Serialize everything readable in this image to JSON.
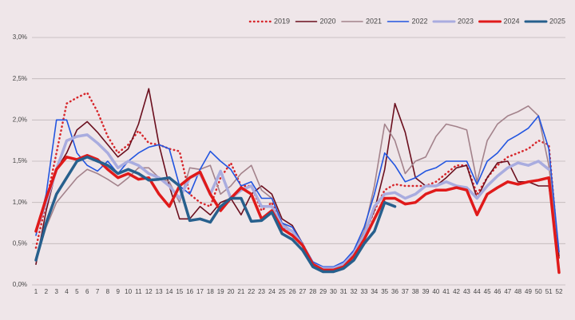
{
  "chart_data": {
    "type": "line",
    "categories": [
      "1",
      "2",
      "3",
      "4",
      "5",
      "6",
      "7",
      "8",
      "9",
      "10",
      "11",
      "12",
      "13",
      "14",
      "15",
      "16",
      "17",
      "18",
      "19",
      "20",
      "21",
      "22",
      "23",
      "24",
      "25",
      "26",
      "27",
      "28",
      "29",
      "30",
      "31",
      "32",
      "33",
      "34",
      "35",
      "36",
      "37",
      "38",
      "39",
      "40",
      "41",
      "42",
      "43",
      "44",
      "45",
      "46",
      "47",
      "48",
      "49",
      "50",
      "51",
      "52"
    ],
    "ylim": [
      0,
      3
    ],
    "yticks": [
      {
        "value": 0,
        "label": "0,0%"
      },
      {
        "value": 0.5,
        "label": "0,5%"
      },
      {
        "value": 1,
        "label": "1,0%"
      },
      {
        "value": 1.5,
        "label": "1,5%"
      },
      {
        "value": 2,
        "label": "2,0%"
      },
      {
        "value": 2.5,
        "label": "2,5%"
      },
      {
        "value": 3,
        "label": "3,0%"
      }
    ],
    "grid": true,
    "legend": "top-right",
    "series": [
      {
        "name": "2019",
        "color": "#d7262b",
        "width": 2.5,
        "dash": "dotted",
        "values": [
          0.45,
          1.0,
          1.6,
          2.2,
          2.27,
          2.33,
          2.1,
          1.8,
          1.6,
          1.7,
          1.87,
          1.72,
          1.7,
          1.65,
          1.62,
          1.1,
          1.0,
          0.95,
          1.3,
          1.48,
          1.2,
          1.2,
          0.9,
          1.0,
          0.7,
          0.65,
          0.5,
          0.25,
          0.2,
          0.2,
          0.25,
          0.35,
          0.6,
          0.9,
          1.15,
          1.22,
          1.2,
          1.2,
          1.2,
          1.25,
          1.35,
          1.45,
          1.45,
          1.1,
          1.3,
          1.45,
          1.55,
          1.6,
          1.65,
          1.75,
          1.7,
          0.3
        ]
      },
      {
        "name": "2020",
        "color": "#6b0f1e",
        "width": 1.6,
        "values": [
          0.25,
          0.9,
          1.4,
          1.6,
          1.88,
          1.98,
          1.85,
          1.7,
          1.55,
          1.65,
          1.95,
          2.38,
          1.7,
          1.2,
          0.8,
          0.8,
          0.95,
          0.85,
          1.0,
          1.05,
          0.85,
          1.1,
          1.2,
          1.1,
          0.8,
          0.72,
          0.5,
          0.25,
          0.2,
          0.2,
          0.25,
          0.4,
          0.6,
          0.9,
          1.4,
          2.2,
          1.85,
          1.3,
          1.2,
          1.2,
          1.3,
          1.42,
          1.45,
          1.05,
          1.3,
          1.48,
          1.5,
          1.25,
          1.25,
          1.2,
          1.2,
          0.35
        ]
      },
      {
        "name": "2021",
        "color": "#a3828b",
        "width": 1.6,
        "values": [
          0.3,
          0.7,
          1.0,
          1.15,
          1.3,
          1.4,
          1.35,
          1.28,
          1.2,
          1.3,
          1.42,
          1.42,
          1.3,
          1.25,
          1.0,
          1.42,
          1.4,
          1.45,
          1.1,
          1.2,
          1.35,
          1.45,
          1.15,
          1.05,
          0.75,
          0.65,
          0.5,
          0.25,
          0.2,
          0.2,
          0.25,
          0.4,
          0.65,
          1.2,
          1.95,
          1.75,
          1.35,
          1.5,
          1.55,
          1.8,
          1.95,
          1.92,
          1.88,
          1.25,
          1.75,
          1.95,
          2.05,
          2.1,
          2.17,
          2.05,
          1.45,
          0.4
        ]
      },
      {
        "name": "2022",
        "color": "#2255e0",
        "width": 1.6,
        "values": [
          0.6,
          1.1,
          2.0,
          2.0,
          1.6,
          1.45,
          1.38,
          1.5,
          1.35,
          1.5,
          1.6,
          1.67,
          1.7,
          1.65,
          1.2,
          1.1,
          1.4,
          1.62,
          1.5,
          1.4,
          1.2,
          1.25,
          1.05,
          1.05,
          0.75,
          0.7,
          0.5,
          0.28,
          0.22,
          0.22,
          0.28,
          0.42,
          0.7,
          1.1,
          1.6,
          1.45,
          1.25,
          1.3,
          1.38,
          1.42,
          1.5,
          1.5,
          1.5,
          1.22,
          1.5,
          1.6,
          1.75,
          1.82,
          1.9,
          2.05,
          1.65,
          0.4
        ]
      },
      {
        "name": "2023",
        "color": "#a9acdf",
        "width": 3.5,
        "values": [
          0.65,
          1.0,
          1.4,
          1.75,
          1.8,
          1.82,
          1.72,
          1.6,
          1.42,
          1.5,
          1.45,
          1.35,
          1.3,
          1.2,
          1.05,
          1.3,
          1.35,
          1.1,
          1.38,
          1.05,
          1.15,
          1.2,
          0.95,
          0.95,
          0.72,
          0.65,
          0.48,
          0.25,
          0.2,
          0.2,
          0.25,
          0.38,
          0.6,
          0.95,
          1.1,
          1.12,
          1.05,
          1.1,
          1.2,
          1.2,
          1.25,
          1.2,
          1.18,
          1.05,
          1.2,
          1.32,
          1.42,
          1.48,
          1.45,
          1.5,
          1.4,
          null
        ]
      },
      {
        "name": "2024",
        "color": "#e01a1a",
        "width": 3.5,
        "values": [
          0.65,
          1.05,
          1.4,
          1.55,
          1.52,
          1.57,
          1.52,
          1.4,
          1.3,
          1.35,
          1.28,
          1.3,
          1.1,
          0.95,
          1.2,
          1.3,
          1.37,
          1.1,
          0.9,
          1.05,
          1.18,
          1.1,
          0.8,
          0.9,
          0.68,
          0.6,
          0.48,
          0.25,
          0.18,
          0.18,
          0.22,
          0.35,
          0.55,
          0.8,
          1.05,
          1.05,
          0.98,
          1.0,
          1.1,
          1.15,
          1.15,
          1.18,
          1.15,
          0.85,
          1.1,
          1.18,
          1.25,
          1.22,
          1.25,
          1.27,
          1.3,
          0.15
        ]
      },
      {
        "name": "2025",
        "color": "#27608d",
        "width": 3.5,
        "values": [
          0.3,
          0.75,
          1.1,
          1.3,
          1.5,
          1.55,
          1.5,
          1.45,
          1.35,
          1.4,
          1.35,
          1.27,
          1.28,
          1.3,
          1.2,
          0.78,
          0.8,
          0.76,
          0.95,
          1.05,
          1.05,
          0.77,
          0.78,
          0.88,
          0.62,
          0.55,
          0.42,
          0.22,
          0.16,
          0.16,
          0.2,
          0.3,
          0.5,
          0.65,
          1.0,
          0.95,
          null,
          null,
          null,
          null,
          null,
          null,
          null,
          null,
          null,
          null,
          null,
          null,
          null,
          null,
          null,
          null
        ]
      }
    ]
  }
}
